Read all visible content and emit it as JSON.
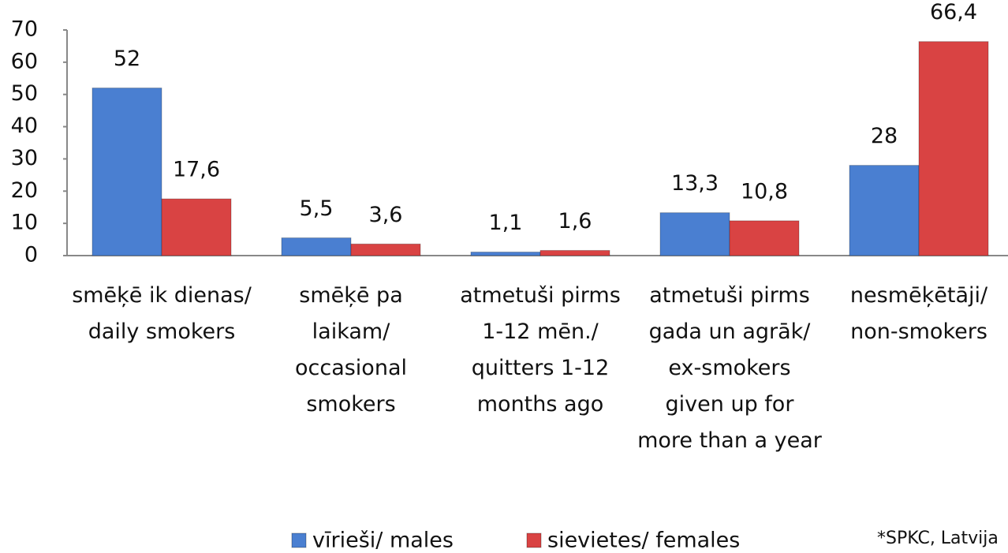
{
  "chart_data": {
    "type": "bar",
    "categories": [
      "smēķē ik dienas/ daily smokers",
      "smēķē pa laikam/ occasional smokers",
      "atmetuši pirms 1-12 mēn./ quitters 1-12 months ago",
      "atmetuši pirms gada un agrāk/ ex-smokers given up for more than a year",
      "nesmēķētāji/ non-smokers"
    ],
    "series": [
      {
        "name": "vīrieši/ males",
        "color": "#4a7fd1",
        "values": [
          52,
          5.5,
          1.1,
          13.3,
          28
        ],
        "value_labels": [
          "52",
          "5,5",
          "1,1",
          "13,3",
          "28"
        ]
      },
      {
        "name": "sievietes/ females",
        "color": "#d94343",
        "values": [
          17.6,
          3.6,
          1.6,
          10.8,
          66.4
        ],
        "value_labels": [
          "17,6",
          "3,6",
          "1,6",
          "10,8",
          "66,4"
        ]
      }
    ],
    "ylim": [
      0,
      70
    ],
    "yticks": [
      0,
      10,
      20,
      30,
      40,
      50,
      60,
      70
    ],
    "legend": "bottom",
    "source": "*SPKC, Latvija"
  }
}
